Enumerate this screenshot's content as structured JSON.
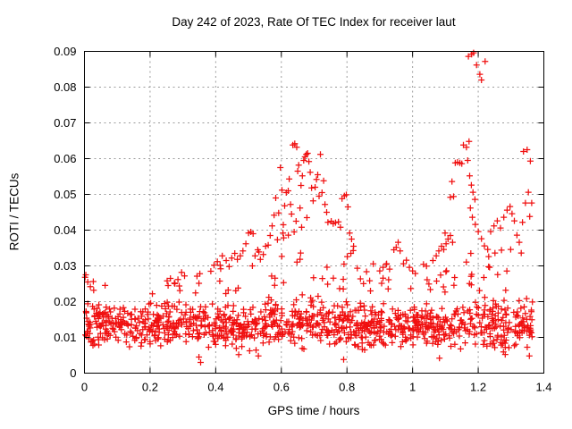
{
  "chart_data": {
    "type": "scatter",
    "title": "Day 242 of 2023, Rate Of TEC Index for receiver laut",
    "xlabel": "GPS time / hours",
    "ylabel": "ROTI / TECUs",
    "xlim": [
      0,
      1.4
    ],
    "ylim": [
      0,
      0.09
    ],
    "xticks": {
      "values": [
        0,
        0.2,
        0.4,
        0.6,
        0.8,
        1,
        1.2,
        1.4
      ],
      "labels": [
        "0",
        "0.2",
        "0.4",
        "0.6",
        "0.8",
        "1",
        "1.2",
        "1.4"
      ]
    },
    "yticks": {
      "values": [
        0,
        0.01,
        0.02,
        0.03,
        0.04,
        0.05,
        0.06,
        0.07,
        0.08,
        0.09
      ],
      "labels": [
        "0",
        "0.01",
        "0.02",
        "0.03",
        "0.04",
        "0.05",
        "0.06",
        "0.07",
        "0.08",
        "0.09"
      ]
    },
    "grid": true,
    "legend": "none",
    "marker": {
      "shape": "plus",
      "size": 7,
      "color": "#f01010"
    },
    "colors": {
      "grid": "#9c9c9c",
      "axis": "#000000",
      "background": "#ffffff",
      "text": "#000000"
    },
    "points": [
      [
        0.002,
        0.0268
      ],
      [
        0.004,
        0.0275
      ],
      [
        0.01,
        0.0255
      ],
      [
        0.018,
        0.0242
      ],
      [
        0.028,
        0.0232
      ],
      [
        0.252,
        0.0258
      ],
      [
        0.255,
        0.0245
      ],
      [
        0.262,
        0.0265
      ],
      [
        0.274,
        0.0252
      ],
      [
        0.285,
        0.0262
      ],
      [
        0.296,
        0.0282
      ],
      [
        0.305,
        0.0272
      ],
      [
        0.385,
        0.0285
      ],
      [
        0.395,
        0.0302
      ],
      [
        0.405,
        0.0312
      ],
      [
        0.415,
        0.0292
      ],
      [
        0.42,
        0.0328
      ],
      [
        0.349,
        0.0045
      ],
      [
        0.354,
        0.003
      ],
      [
        0.47,
        0.0052
      ],
      [
        0.53,
        0.0048
      ],
      [
        0.79,
        0.0038
      ],
      [
        1.082,
        0.0042
      ],
      [
        1.356,
        0.0048
      ],
      [
        0.432,
        0.0315
      ],
      [
        0.441,
        0.0298
      ],
      [
        0.449,
        0.0322
      ],
      [
        0.458,
        0.0335
      ],
      [
        0.466,
        0.0318
      ],
      [
        0.475,
        0.0328
      ],
      [
        0.483,
        0.0342
      ],
      [
        0.492,
        0.0362
      ],
      [
        0.5,
        0.0392
      ],
      [
        0.507,
        0.0395
      ],
      [
        0.514,
        0.039
      ],
      [
        0.52,
        0.0328
      ],
      [
        0.528,
        0.0345
      ],
      [
        0.536,
        0.0318
      ],
      [
        0.545,
        0.0332
      ],
      [
        0.552,
        0.0355
      ],
      [
        0.56,
        0.0358
      ],
      [
        0.566,
        0.0385
      ],
      [
        0.572,
        0.0412
      ],
      [
        0.578,
        0.0442
      ],
      [
        0.583,
        0.049
      ],
      [
        0.588,
        0.0373
      ],
      [
        0.592,
        0.0448
      ],
      [
        0.597,
        0.0575
      ],
      [
        0.602,
        0.0512
      ],
      [
        0.605,
        0.0392
      ],
      [
        0.606,
        0.0415
      ],
      [
        0.61,
        0.0468
      ],
      [
        0.615,
        0.0505
      ],
      [
        0.621,
        0.051
      ],
      [
        0.624,
        0.0543
      ],
      [
        0.628,
        0.0472
      ],
      [
        0.631,
        0.0445
      ],
      [
        0.635,
        0.0638
      ],
      [
        0.639,
        0.0395
      ],
      [
        0.641,
        0.0642
      ],
      [
        0.645,
        0.0425
      ],
      [
        0.647,
        0.0632
      ],
      [
        0.65,
        0.0565
      ],
      [
        0.653,
        0.0582
      ],
      [
        0.657,
        0.0462
      ],
      [
        0.66,
        0.0525
      ],
      [
        0.662,
        0.0408
      ],
      [
        0.664,
        0.0552
      ],
      [
        0.668,
        0.0595
      ],
      [
        0.672,
        0.0605
      ],
      [
        0.676,
        0.0612
      ],
      [
        0.68,
        0.0615
      ],
      [
        0.684,
        0.0592
      ],
      [
        0.688,
        0.0562
      ],
      [
        0.692,
        0.0518
      ],
      [
        0.697,
        0.0482
      ],
      [
        0.703,
        0.052
      ],
      [
        0.707,
        0.0542
      ],
      [
        0.711,
        0.0555
      ],
      [
        0.715,
        0.0495
      ],
      [
        0.719,
        0.0612
      ],
      [
        0.724,
        0.0505
      ],
      [
        0.729,
        0.0538
      ],
      [
        0.733,
        0.0472
      ],
      [
        0.738,
        0.045
      ],
      [
        0.742,
        0.0422
      ],
      [
        0.678,
        0.0435
      ],
      [
        0.752,
        0.0425
      ],
      [
        0.758,
        0.0418
      ],
      [
        0.765,
        0.0421
      ],
      [
        0.774,
        0.0423
      ],
      [
        0.78,
        0.0408
      ],
      [
        0.785,
        0.0488
      ],
      [
        0.792,
        0.0496
      ],
      [
        0.798,
        0.0499
      ],
      [
        0.803,
        0.0465
      ],
      [
        0.808,
        0.0392
      ],
      [
        0.814,
        0.0375
      ],
      [
        0.82,
        0.0355
      ],
      [
        0.791,
        0.0305
      ],
      [
        0.801,
        0.0326
      ],
      [
        0.812,
        0.0335
      ],
      [
        0.9,
        0.0286
      ],
      [
        0.91,
        0.0296
      ],
      [
        0.921,
        0.0306
      ],
      [
        0.93,
        0.0291
      ],
      [
        0.943,
        0.0345
      ],
      [
        0.95,
        0.0352
      ],
      [
        0.956,
        0.0366
      ],
      [
        0.962,
        0.0342
      ],
      [
        0.972,
        0.0306
      ],
      [
        0.981,
        0.0316
      ],
      [
        0.99,
        0.0296
      ],
      [
        1.0,
        0.0286
      ],
      [
        1.062,
        0.0315
      ],
      [
        1.072,
        0.0328
      ],
      [
        1.08,
        0.0342
      ],
      [
        1.088,
        0.0355
      ],
      [
        1.095,
        0.0346
      ],
      [
        1.099,
        0.0392
      ],
      [
        1.102,
        0.0362
      ],
      [
        1.108,
        0.0375
      ],
      [
        1.115,
        0.0385
      ],
      [
        1.122,
        0.0366
      ],
      [
        1.115,
        0.0492
      ],
      [
        1.12,
        0.0536
      ],
      [
        1.125,
        0.0494
      ],
      [
        1.13,
        0.0588
      ],
      [
        1.137,
        0.059
      ],
      [
        1.144,
        0.0588
      ],
      [
        1.15,
        0.0586
      ],
      [
        1.155,
        0.0638
      ],
      [
        1.164,
        0.0632
      ],
      [
        1.17,
        0.0886
      ],
      [
        1.18,
        0.0892
      ],
      [
        1.186,
        0.0896
      ],
      [
        1.195,
        0.0862
      ],
      [
        1.205,
        0.0836
      ],
      [
        1.21,
        0.082
      ],
      [
        1.221,
        0.0872
      ],
      [
        1.172,
        0.0648
      ],
      [
        1.168,
        0.0595
      ],
      [
        1.174,
        0.0552
      ],
      [
        1.179,
        0.0526
      ],
      [
        1.184,
        0.0506
      ],
      [
        1.19,
        0.0486
      ],
      [
        1.176,
        0.0462
      ],
      [
        1.182,
        0.0436
      ],
      [
        1.191,
        0.0416
      ],
      [
        1.2,
        0.0396
      ],
      [
        1.21,
        0.0376
      ],
      [
        1.219,
        0.0356
      ],
      [
        1.229,
        0.0346
      ],
      [
        1.232,
        0.0326
      ],
      [
        1.238,
        0.0396
      ],
      [
        1.248,
        0.0412
      ],
      [
        1.251,
        0.0336
      ],
      [
        1.258,
        0.0426
      ],
      [
        1.268,
        0.0406
      ],
      [
        1.271,
        0.0344
      ],
      [
        1.278,
        0.0436
      ],
      [
        1.288,
        0.0456
      ],
      [
        1.297,
        0.0466
      ],
      [
        1.299,
        0.0346
      ],
      [
        1.303,
        0.0446
      ],
      [
        1.31,
        0.0426
      ],
      [
        1.318,
        0.0386
      ],
      [
        1.325,
        0.0366
      ],
      [
        1.331,
        0.0336
      ],
      [
        1.335,
        0.0422
      ],
      [
        1.338,
        0.062
      ],
      [
        1.344,
        0.0476
      ],
      [
        1.349,
        0.0625
      ],
      [
        1.353,
        0.0506
      ],
      [
        1.357,
        0.0438
      ],
      [
        1.359,
        0.0593
      ],
      [
        1.363,
        0.0476
      ]
    ],
    "background_band": {
      "description": "dense background scatter band (approximated distribution)",
      "distribution": "triangular",
      "seed": 20230242,
      "y_clamp": [
        0.0032,
        0.0898
      ],
      "segments": [
        [
          0.0,
          0.1,
          85,
          0.0135,
          0.0075,
          0.05,
          0.022,
          0.0265
        ],
        [
          0.1,
          0.25,
          115,
          0.0135,
          0.0065,
          0.03,
          0.021,
          0.024
        ],
        [
          0.25,
          0.35,
          80,
          0.0135,
          0.007,
          0.07,
          0.022,
          0.028
        ],
        [
          0.35,
          0.45,
          80,
          0.013,
          0.007,
          0.07,
          0.022,
          0.031
        ],
        [
          0.45,
          0.55,
          80,
          0.013,
          0.007,
          0.09,
          0.023,
          0.037
        ],
        [
          0.55,
          0.65,
          85,
          0.014,
          0.008,
          0.1,
          0.024,
          0.04
        ],
        [
          0.65,
          0.75,
          85,
          0.014,
          0.008,
          0.1,
          0.024,
          0.038
        ],
        [
          0.75,
          0.85,
          90,
          0.013,
          0.0075,
          0.09,
          0.023,
          0.035
        ],
        [
          0.85,
          0.95,
          90,
          0.013,
          0.0072,
          0.08,
          0.022,
          0.0315
        ],
        [
          0.95,
          1.05,
          90,
          0.013,
          0.0072,
          0.08,
          0.022,
          0.0305
        ],
        [
          1.05,
          1.15,
          85,
          0.013,
          0.007,
          0.07,
          0.022,
          0.029
        ],
        [
          1.15,
          1.25,
          78,
          0.014,
          0.008,
          0.08,
          0.023,
          0.034
        ],
        [
          1.25,
          1.37,
          95,
          0.013,
          0.008,
          0.08,
          0.022,
          0.031
        ]
      ]
    }
  }
}
